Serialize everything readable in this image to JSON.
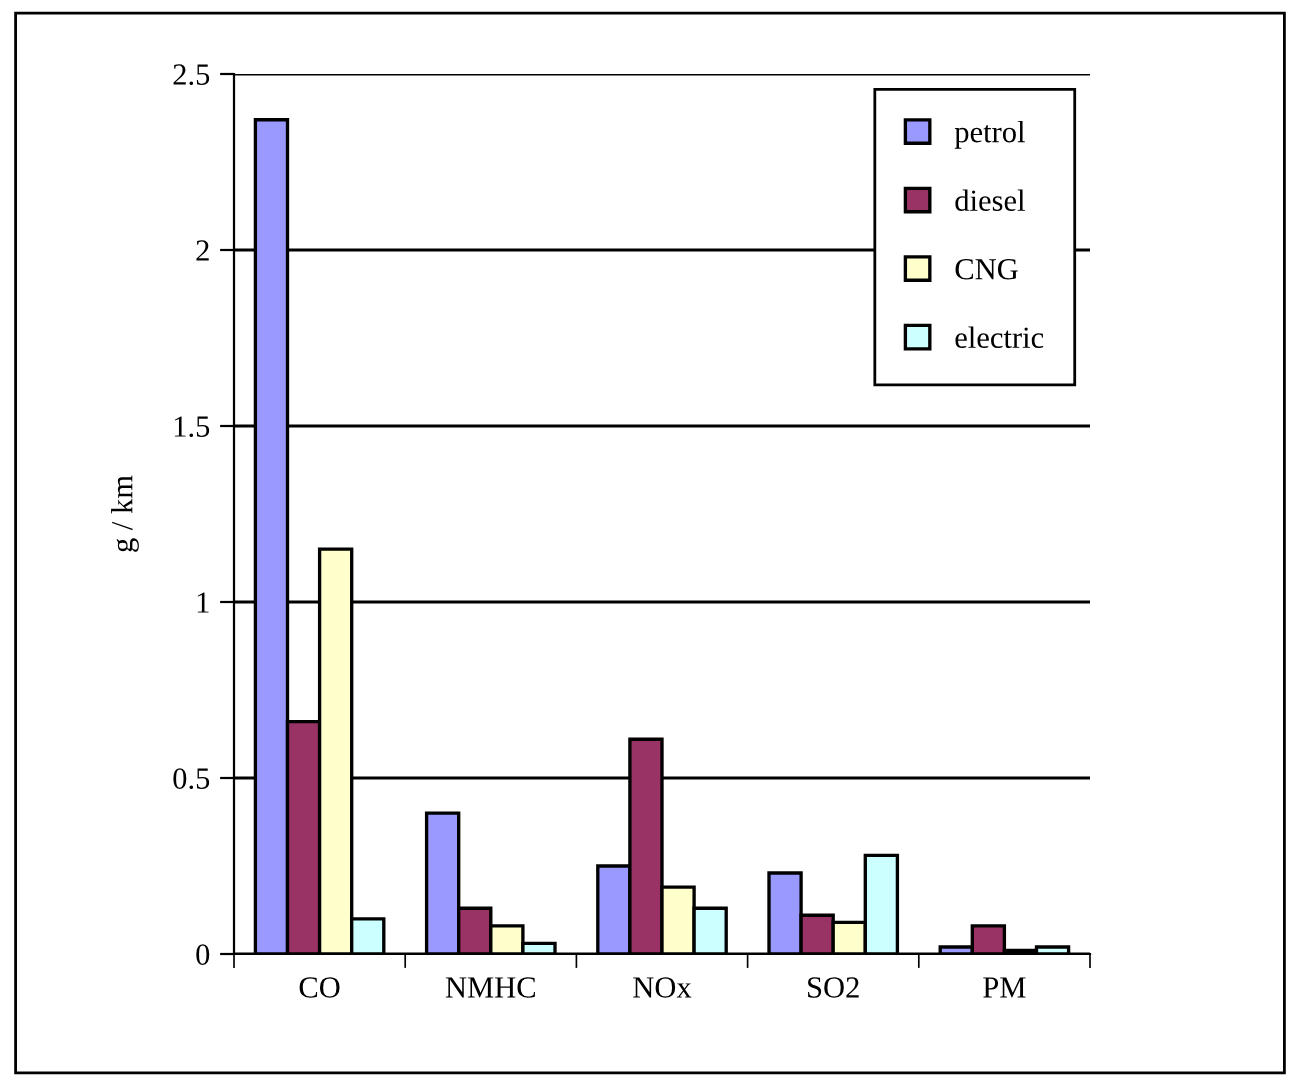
{
  "chart_data": {
    "type": "bar",
    "ylabel": "g / km",
    "categories": [
      "CO",
      "NMHC",
      "NOx",
      "SO2",
      "PM"
    ],
    "series": [
      {
        "name": "petrol",
        "color": "#9999ff",
        "values": [
          2.37,
          0.4,
          0.25,
          0.23,
          0.02
        ]
      },
      {
        "name": "diesel",
        "color": "#993366",
        "values": [
          0.66,
          0.13,
          0.61,
          0.11,
          0.08
        ]
      },
      {
        "name": "CNG",
        "color": "#ffffcc",
        "values": [
          1.15,
          0.08,
          0.19,
          0.09,
          0.01
        ]
      },
      {
        "name": "electric",
        "color": "#ccffff",
        "values": [
          0.1,
          0.03,
          0.13,
          0.28,
          0.02
        ]
      }
    ],
    "ylim": [
      0,
      2.5
    ],
    "yticks": [
      0,
      0.5,
      1,
      1.5,
      2,
      2.5
    ],
    "grid": "y",
    "legend": "top right"
  }
}
